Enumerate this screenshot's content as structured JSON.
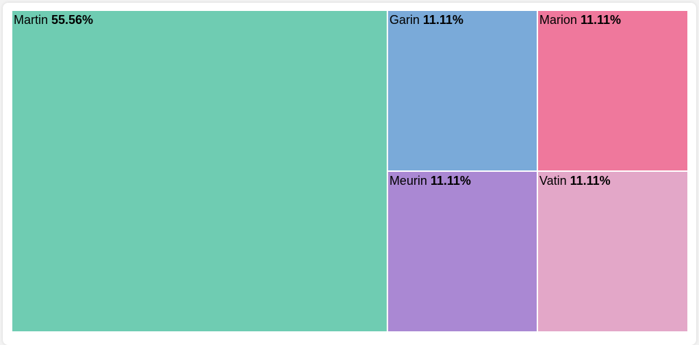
{
  "chart_data": {
    "type": "treemap",
    "title": "",
    "series": [
      {
        "name": "Martin",
        "value": 55.56,
        "label": "55.56%",
        "color": "#6fccb2"
      },
      {
        "name": "Garin",
        "value": 11.11,
        "label": "11.11%",
        "color": "#7aaad9"
      },
      {
        "name": "Marion",
        "value": 11.11,
        "label": "11.11%",
        "color": "#ef789c"
      },
      {
        "name": "Meurin",
        "value": 11.11,
        "label": "11.11%",
        "color": "#aa88d3"
      },
      {
        "name": "Vatin",
        "value": 11.11,
        "label": "11.11%",
        "color": "#e3a7c8"
      }
    ]
  }
}
